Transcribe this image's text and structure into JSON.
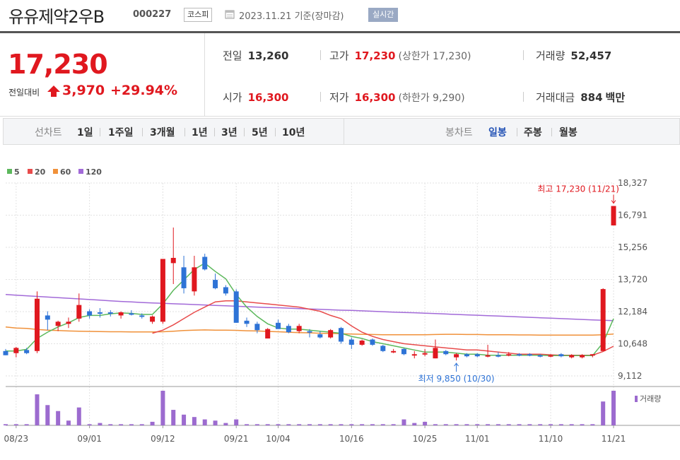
{
  "header": {
    "name": "유유제약2우B",
    "code": "000227",
    "market": "코스피",
    "date_text": "2023.11.21 기준(장마감)",
    "realtime": "실시간"
  },
  "price": {
    "current": "17,230",
    "vs_label": "전일대비",
    "change_abs": "3,970",
    "change_pct": "+29.94%"
  },
  "stats": {
    "prev_label": "전일",
    "prev_value": "13,260",
    "open_label": "시가",
    "open_value": "16,300",
    "high_label": "고가",
    "high_value": "17,230",
    "upper_limit": "(상한가 17,230)",
    "low_label": "저가",
    "low_value": "16,300",
    "lower_limit": "(하한가 9,290)",
    "volume_label": "거래량",
    "volume_value": "52,457",
    "amount_label": "거래대금",
    "amount_value": "884",
    "amount_unit": "백만"
  },
  "toolbar": {
    "line_label": "선차트",
    "periods": [
      "1일",
      "1주일",
      "3개월",
      "1년",
      "3년",
      "5년",
      "10년"
    ],
    "candle_label": "봉차트",
    "candle_types": [
      "일봉",
      "주봉",
      "월봉"
    ],
    "active_candle": "일봉"
  },
  "chart_data": {
    "type": "candlestick",
    "legend": [
      {
        "label": "5",
        "color": "#5cb85c"
      },
      {
        "label": "20",
        "color": "#e84b4b"
      },
      {
        "label": "60",
        "color": "#f0913a"
      },
      {
        "label": "120",
        "color": "#a26ad8"
      }
    ],
    "y_ticks": [
      "18,327",
      "16,791",
      "15,256",
      "13,720",
      "12,184",
      "10,648",
      "9,112"
    ],
    "ylim": [
      9112,
      18327
    ],
    "x_ticks": [
      "08/23",
      "09/01",
      "09/12",
      "09/21",
      "10/04",
      "10/16",
      "10/25",
      "11/01",
      "11/10",
      "11/21"
    ],
    "colors": {
      "up": "#e0181f",
      "down": "#2e73d6",
      "volume": "#9c6bcf"
    },
    "candles": [
      {
        "d": "08/22",
        "o": 10300,
        "h": 10400,
        "l": 10100,
        "c": 10100
      },
      {
        "d": "08/23",
        "o": 10200,
        "h": 10500,
        "l": 10000,
        "c": 10450
      },
      {
        "d": "08/24",
        "o": 10350,
        "h": 10450,
        "l": 10150,
        "c": 10200
      },
      {
        "d": "08/25",
        "o": 10300,
        "h": 13150,
        "l": 10200,
        "c": 12800
      },
      {
        "d": "08/28",
        "o": 12000,
        "h": 12200,
        "l": 11300,
        "c": 11800
      },
      {
        "d": "08/29",
        "o": 11500,
        "h": 11750,
        "l": 11250,
        "c": 11700
      },
      {
        "d": "08/30",
        "o": 11600,
        "h": 11900,
        "l": 11400,
        "c": 11700
      },
      {
        "d": "08/31",
        "o": 11850,
        "h": 13050,
        "l": 11700,
        "c": 12500
      },
      {
        "d": "09/01",
        "o": 12200,
        "h": 12300,
        "l": 11850,
        "c": 12000
      },
      {
        "d": "09/04",
        "o": 12150,
        "h": 12350,
        "l": 11900,
        "c": 12100
      },
      {
        "d": "09/05",
        "o": 12150,
        "h": 12250,
        "l": 11950,
        "c": 12100
      },
      {
        "d": "09/06",
        "o": 12000,
        "h": 12200,
        "l": 11850,
        "c": 12150
      },
      {
        "d": "09/07",
        "o": 12100,
        "h": 12250,
        "l": 12000,
        "c": 12050
      },
      {
        "d": "09/08",
        "o": 12000,
        "h": 12100,
        "l": 11850,
        "c": 11950
      },
      {
        "d": "09/11",
        "o": 11700,
        "h": 12000,
        "l": 11600,
        "c": 11950
      },
      {
        "d": "09/12",
        "o": 11700,
        "h": 14700,
        "l": 11600,
        "c": 14700
      },
      {
        "d": "09/13",
        "o": 14500,
        "h": 16200,
        "l": 13500,
        "c": 14750
      },
      {
        "d": "09/14",
        "o": 14300,
        "h": 14850,
        "l": 13050,
        "c": 13300
      },
      {
        "d": "09/15",
        "o": 13150,
        "h": 14850,
        "l": 12950,
        "c": 14300
      },
      {
        "d": "09/18",
        "o": 14800,
        "h": 14950,
        "l": 14150,
        "c": 14200
      },
      {
        "d": "09/19",
        "o": 13700,
        "h": 14000,
        "l": 13250,
        "c": 13300
      },
      {
        "d": "09/20",
        "o": 13350,
        "h": 13450,
        "l": 12950,
        "c": 13050
      },
      {
        "d": "09/21",
        "o": 13150,
        "h": 13250,
        "l": 11650,
        "c": 11650
      },
      {
        "d": "09/22",
        "o": 11750,
        "h": 11900,
        "l": 11450,
        "c": 11600
      },
      {
        "d": "09/25",
        "o": 11600,
        "h": 11700,
        "l": 11150,
        "c": 11300
      },
      {
        "d": "09/26",
        "o": 10900,
        "h": 11400,
        "l": 10900,
        "c": 11350
      },
      {
        "d": "10/04",
        "o": 11650,
        "h": 11800,
        "l": 11350,
        "c": 11350
      },
      {
        "d": "10/05",
        "o": 11500,
        "h": 11600,
        "l": 11150,
        "c": 11200
      },
      {
        "d": "10/06",
        "o": 11250,
        "h": 11600,
        "l": 11150,
        "c": 11500
      },
      {
        "d": "10/10",
        "o": 11250,
        "h": 11350,
        "l": 10950,
        "c": 11200
      },
      {
        "d": "10/11",
        "o": 11100,
        "h": 11250,
        "l": 10900,
        "c": 10950
      },
      {
        "d": "10/12",
        "o": 10950,
        "h": 11350,
        "l": 10900,
        "c": 11300
      },
      {
        "d": "10/13",
        "o": 11400,
        "h": 11450,
        "l": 10650,
        "c": 10750
      },
      {
        "d": "10/16",
        "o": 10850,
        "h": 10950,
        "l": 10400,
        "c": 10600
      },
      {
        "d": "10/17",
        "o": 10600,
        "h": 10850,
        "l": 10550,
        "c": 10800
      },
      {
        "d": "10/18",
        "o": 10850,
        "h": 10900,
        "l": 10550,
        "c": 10600
      },
      {
        "d": "10/19",
        "o": 10550,
        "h": 10600,
        "l": 10250,
        "c": 10300
      },
      {
        "d": "10/20",
        "o": 10300,
        "h": 10400,
        "l": 10200,
        "c": 10300
      },
      {
        "d": "10/23",
        "o": 10400,
        "h": 10450,
        "l": 10100,
        "c": 10150
      },
      {
        "d": "10/24",
        "o": 10100,
        "h": 10300,
        "l": 9950,
        "c": 10150
      },
      {
        "d": "10/25",
        "o": 10150,
        "h": 10400,
        "l": 10050,
        "c": 10200
      },
      {
        "d": "10/26",
        "o": 9950,
        "h": 10850,
        "l": 9950,
        "c": 10450
      },
      {
        "d": "10/27",
        "o": 10300,
        "h": 10350,
        "l": 10100,
        "c": 10150
      },
      {
        "d": "10/30",
        "o": 10000,
        "h": 10200,
        "l": 9850,
        "c": 10150
      },
      {
        "d": "10/31",
        "o": 10150,
        "h": 10200,
        "l": 10000,
        "c": 10050
      },
      {
        "d": "11/01",
        "o": 10150,
        "h": 10200,
        "l": 10000,
        "c": 10050
      },
      {
        "d": "11/02",
        "o": 10050,
        "h": 10600,
        "l": 10000,
        "c": 10100
      },
      {
        "d": "11/03",
        "o": 10100,
        "h": 10250,
        "l": 10000,
        "c": 10050
      },
      {
        "d": "11/06",
        "o": 10100,
        "h": 10250,
        "l": 10050,
        "c": 10150
      },
      {
        "d": "11/07",
        "o": 10150,
        "h": 10200,
        "l": 10050,
        "c": 10100
      },
      {
        "d": "11/08",
        "o": 10150,
        "h": 10200,
        "l": 10050,
        "c": 10100
      },
      {
        "d": "11/09",
        "o": 10100,
        "h": 10150,
        "l": 10000,
        "c": 10050
      },
      {
        "d": "11/10",
        "o": 10050,
        "h": 10150,
        "l": 10000,
        "c": 10100
      },
      {
        "d": "11/13",
        "o": 10150,
        "h": 10200,
        "l": 10000,
        "c": 10050
      },
      {
        "d": "11/14",
        "o": 10000,
        "h": 10150,
        "l": 9950,
        "c": 10100
      },
      {
        "d": "11/15",
        "o": 10000,
        "h": 10150,
        "l": 9950,
        "c": 10100
      },
      {
        "d": "11/16",
        "o": 10100,
        "h": 10150,
        "l": 10000,
        "c": 10150
      },
      {
        "d": "11/17",
        "o": 10300,
        "h": 13300,
        "l": 10300,
        "c": 13260
      },
      {
        "d": "11/21",
        "o": 16300,
        "h": 17230,
        "l": 16300,
        "c": 17230
      }
    ],
    "ma5": [
      10300,
      10300,
      10380,
      10900,
      11200,
      11450,
      11650,
      11900,
      12000,
      12000,
      12080,
      12120,
      12100,
      12050,
      12050,
      12550,
      13200,
      13700,
      14200,
      14500,
      14100,
      13750,
      13000,
      12400,
      11950,
      11600,
      11400,
      11350,
      11350,
      11300,
      11250,
      11200,
      11150,
      11000,
      10900,
      10750,
      10650,
      10550,
      10450,
      10350,
      10250,
      10250,
      10250,
      10200,
      10150,
      10150,
      10100,
      10100,
      10100,
      10100,
      10100,
      10100,
      10080,
      10080,
      10080,
      10080,
      10080,
      10700,
      11850
    ],
    "ma20": [
      null,
      null,
      null,
      null,
      null,
      null,
      null,
      null,
      10800,
      null,
      null,
      null,
      null,
      null,
      11150,
      11300,
      11550,
      11850,
      12150,
      12400,
      12650,
      12700,
      12700,
      12650,
      12600,
      12550,
      12500,
      12450,
      12400,
      12300,
      12200,
      12000,
      11850,
      11500,
      11200,
      11000,
      10850,
      10750,
      10650,
      10600,
      10550,
      10500,
      10450,
      10400,
      10350,
      10350,
      10300,
      10250,
      10200,
      10150,
      10150,
      10150,
      10120,
      10100,
      10100,
      10100,
      10100,
      10280,
      10530
    ],
    "ma60": [
      11450,
      11400,
      11380,
      11330,
      11300,
      11280,
      11260,
      11250,
      11240,
      11230,
      11220,
      11220,
      11210,
      11210,
      11210,
      11220,
      11250,
      11280,
      11300,
      11310,
      11300,
      11300,
      11290,
      11270,
      11260,
      11240,
      11220,
      11200,
      11180,
      11170,
      11150,
      11140,
      11130,
      11110,
      11100,
      11090,
      11080,
      11080,
      11080,
      11080,
      11080,
      11090,
      11100,
      11100,
      11090,
      11090,
      11080,
      11080,
      11080,
      11070,
      11070,
      11060,
      11060,
      11060,
      11060,
      11060,
      11060,
      11080,
      11110
    ],
    "ma120": [
      13000,
      12970,
      12940,
      12910,
      12880,
      12850,
      12820,
      12790,
      12760,
      12730,
      12700,
      12670,
      12650,
      12620,
      12600,
      12580,
      12560,
      12540,
      12520,
      12500,
      12480,
      12460,
      12440,
      12420,
      12400,
      12380,
      12370,
      12350,
      12330,
      12310,
      12290,
      12270,
      12250,
      12240,
      12220,
      12200,
      12180,
      12160,
      12140,
      12130,
      12110,
      12090,
      12070,
      12050,
      12030,
      12010,
      11990,
      11970,
      11950,
      11930,
      11910,
      11890,
      11870,
      11850,
      11830,
      11810,
      11790,
      11770,
      11750
    ],
    "volume": [
      1,
      1,
      1,
      26,
      17,
      12,
      4,
      15,
      1,
      2,
      1,
      1,
      1,
      1,
      3,
      29,
      13,
      9,
      7,
      5,
      4,
      2,
      5,
      1,
      1,
      1,
      1,
      1,
      1,
      1,
      1,
      1,
      1,
      1,
      1,
      1,
      1,
      1,
      5,
      2,
      3,
      1,
      1,
      1,
      1,
      1,
      1,
      1,
      1,
      1,
      1,
      1,
      1,
      1,
      1,
      1,
      1,
      20,
      29
    ],
    "volume_max": 29,
    "volume_label": "거래량",
    "high_annotation": "최고 17,230 (11/21)",
    "low_annotation": "최저 9,850 (10/30)",
    "high_index": 58,
    "low_index": 43,
    "low_value": 9850,
    "high_value": 17230
  }
}
